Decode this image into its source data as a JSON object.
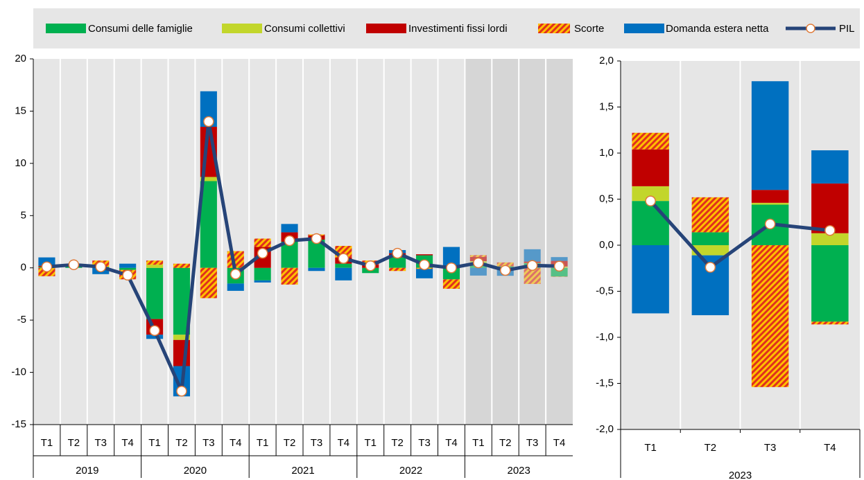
{
  "chart_data": [
    {
      "type": "bar",
      "stacked": true,
      "legend": "top",
      "shade_last_group": true,
      "background": "#e6e6e6",
      "categories": [
        "T1",
        "T2",
        "T3",
        "T4",
        "T1",
        "T2",
        "T3",
        "T4",
        "T1",
        "T2",
        "T3",
        "T4",
        "T1",
        "T2",
        "T3",
        "T4",
        "T1",
        "T2",
        "T3",
        "T4"
      ],
      "years": [
        "2019",
        "2020",
        "2021",
        "2022",
        "2023"
      ],
      "ylim": [
        -15,
        20
      ],
      "yticks": [
        -15,
        -10,
        -5,
        0,
        5,
        10,
        15,
        20
      ],
      "series": [
        {
          "name": "Consumi delle famiglie",
          "kind": "bar",
          "color": "#00b050",
          "values": [
            0.1,
            0.2,
            0.1,
            -0.2,
            -4.9,
            -6.4,
            8.3,
            -1.5,
            -1.2,
            2.5,
            2.7,
            0.4,
            -0.5,
            1.0,
            1.2,
            -1.1,
            0.48,
            0.14,
            0.44,
            -0.83
          ]
        },
        {
          "name": "Consumi collettivi",
          "kind": "bar",
          "color": "#c2d62b",
          "values": [
            0,
            0,
            0,
            0,
            0.3,
            -0.5,
            0.4,
            0,
            0,
            0,
            0,
            0,
            0,
            0,
            0,
            0,
            0.16,
            -0.11,
            0.02,
            0.13
          ]
        },
        {
          "name": "Investimenti fissi lordi",
          "kind": "bar",
          "color": "#c00000",
          "values": [
            0.1,
            0.1,
            0,
            0,
            -1.5,
            -2.5,
            4.8,
            0,
            2.0,
            0.9,
            0.4,
            0.6,
            0.3,
            0.4,
            0.1,
            0.2,
            0.4,
            0,
            0.14,
            0.54
          ]
        },
        {
          "name": "Scorte",
          "kind": "bar",
          "color": "#ffc000",
          "hatch_color": "#e0301e",
          "values": [
            -0.8,
            0,
            0.6,
            -0.9,
            0.4,
            0.4,
            -2.9,
            1.6,
            0.8,
            -1.6,
            0.1,
            1.1,
            0.4,
            -0.3,
            -0.1,
            -0.9,
            0.18,
            0.38,
            -1.54,
            -0.03
          ]
        },
        {
          "name": "Domanda estera netta",
          "kind": "bar",
          "color": "#0070c0",
          "values": [
            0.8,
            0,
            -0.6,
            0.4,
            -0.4,
            -2.9,
            3.4,
            -0.7,
            -0.2,
            0.8,
            -0.3,
            -1.2,
            0,
            0.3,
            -0.9,
            1.8,
            -0.74,
            -0.65,
            1.18,
            0.36
          ]
        },
        {
          "name": "PIL",
          "kind": "line",
          "color": "#264478",
          "marker_fill": "#ffffff",
          "marker_edge": "#e07b39",
          "values": [
            0.1,
            0.3,
            0.1,
            -0.7,
            -6.0,
            -11.8,
            14.0,
            -0.6,
            1.4,
            2.6,
            2.8,
            0.9,
            0.2,
            1.4,
            0.3,
            0.0,
            0.48,
            -0.24,
            0.23,
            0.16
          ]
        }
      ]
    },
    {
      "type": "bar",
      "stacked": true,
      "background": "#e6e6e6",
      "categories": [
        "T1",
        "T2",
        "T3",
        "T4"
      ],
      "years": [
        "2023"
      ],
      "ylim": [
        -2,
        2
      ],
      "yticks": [
        {
          "value": -2,
          "label": "-2,0"
        },
        {
          "value": -1.5,
          "label": "-1,5"
        },
        {
          "value": -1,
          "label": "-1,0"
        },
        {
          "value": -0.5,
          "label": "-0,5"
        },
        {
          "value": 0,
          "label": "0,0"
        },
        {
          "value": 0.5,
          "label": "0,5"
        },
        {
          "value": 1,
          "label": "1,0"
        },
        {
          "value": 1.5,
          "label": "1,5"
        },
        {
          "value": 2,
          "label": "2,0"
        }
      ],
      "series": [
        {
          "kind": "bar",
          "color": "#00b050",
          "values": [
            0.48,
            0.14,
            0.44,
            -0.83
          ]
        },
        {
          "kind": "bar",
          "color": "#c2d62b",
          "values": [
            0.16,
            -0.11,
            0.02,
            0.13
          ]
        },
        {
          "kind": "bar",
          "color": "#c00000",
          "values": [
            0.4,
            0,
            0.14,
            0.54
          ]
        },
        {
          "kind": "bar",
          "color": "#ffc000",
          "hatch_color": "#e0301e",
          "values": [
            0.18,
            0.38,
            -1.54,
            -0.03
          ]
        },
        {
          "kind": "bar",
          "color": "#0070c0",
          "values": [
            -0.74,
            -0.65,
            1.18,
            0.36
          ]
        },
        {
          "kind": "line",
          "color": "#264478",
          "marker_fill": "#ffffff",
          "marker_edge": "#e07b39",
          "values": [
            0.48,
            -0.24,
            0.23,
            0.16
          ]
        }
      ]
    }
  ]
}
